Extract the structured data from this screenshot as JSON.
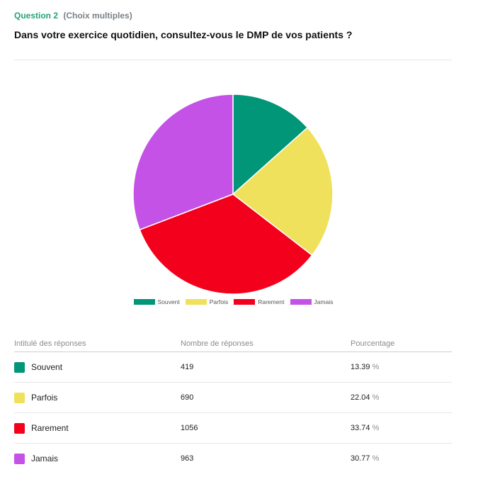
{
  "question": {
    "number": "Question 2",
    "type": "(Choix multiples)",
    "title": "Dans votre exercice quotidien, consultez-vous le DMP de vos patients ?"
  },
  "chart_data": {
    "type": "pie",
    "categories": [
      "Souvent",
      "Parfois",
      "Rarement",
      "Jamais"
    ],
    "values": [
      419,
      690,
      1056,
      963
    ],
    "percentages": [
      13.39,
      22.04,
      33.74,
      30.77
    ],
    "colors": [
      "#009677",
      "#efe15c",
      "#f3001c",
      "#c452e6"
    ],
    "legend_position": "bottom"
  },
  "table": {
    "headers": [
      "Intitulé des réponses",
      "Nombre de réponses",
      "Pourcentage"
    ],
    "rows": [
      {
        "label": "Souvent",
        "count": "419",
        "percent": "13.39",
        "color": "#009677"
      },
      {
        "label": "Parfois",
        "count": "690",
        "percent": "22.04",
        "color": "#efe15c"
      },
      {
        "label": "Rarement",
        "count": "1056",
        "percent": "33.74",
        "color": "#f3001c"
      },
      {
        "label": "Jamais",
        "count": "963",
        "percent": "30.77",
        "color": "#c452e6"
      }
    ],
    "percent_sign": "%"
  }
}
